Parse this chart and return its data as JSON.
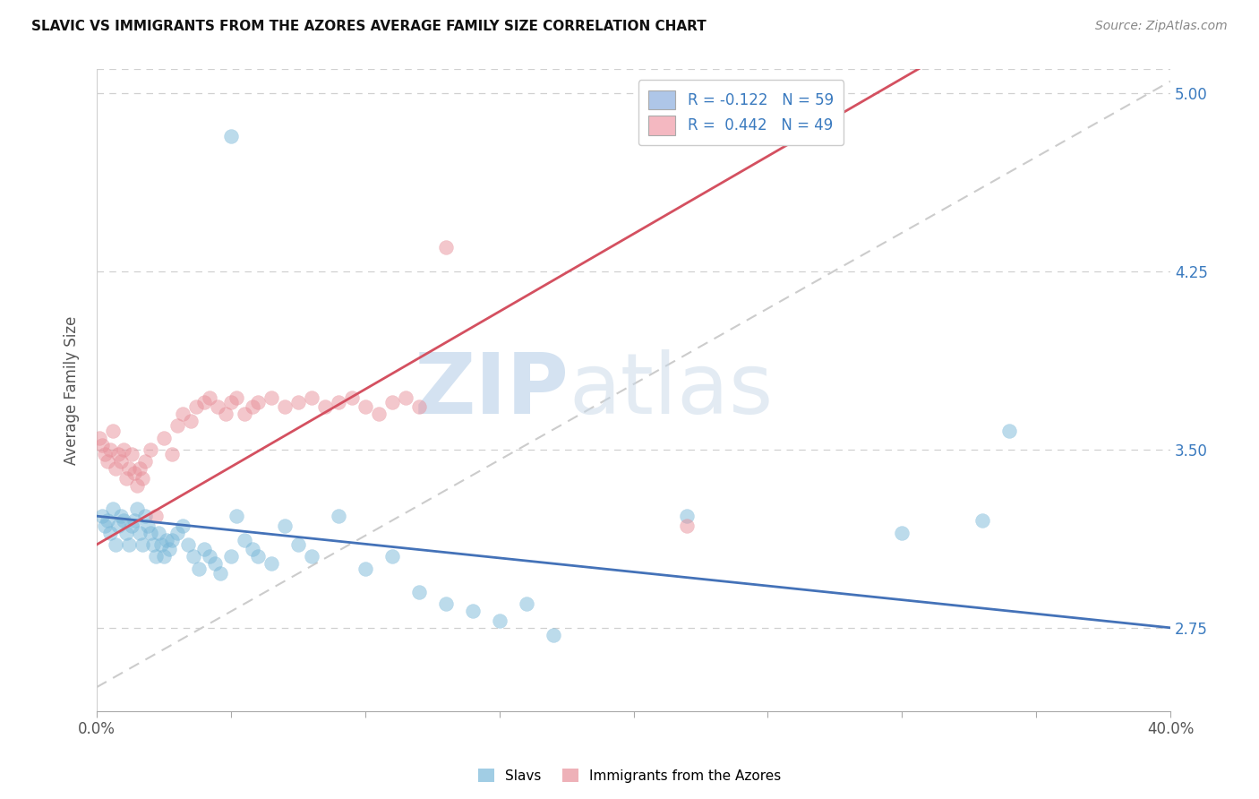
{
  "title": "SLAVIC VS IMMIGRANTS FROM THE AZORES AVERAGE FAMILY SIZE CORRELATION CHART",
  "source": "Source: ZipAtlas.com",
  "ylabel": "Average Family Size",
  "x_min": 0.0,
  "x_max": 0.4,
  "y_min": 2.4,
  "y_max": 5.1,
  "right_yticks": [
    5.0,
    4.25,
    3.5,
    2.75
  ],
  "x_ticklabels_show": [
    "0.0%",
    "40.0%"
  ],
  "x_ticks": [
    0.0,
    0.05,
    0.1,
    0.15,
    0.2,
    0.25,
    0.3,
    0.35,
    0.4
  ],
  "bottom_labels": [
    "Slavs",
    "Immigrants from the Azores"
  ],
  "legend_entries": [
    {
      "label": "R = -0.122   N = 59",
      "facecolor": "#aec6e8"
    },
    {
      "label": "R =  0.442   N = 49",
      "facecolor": "#f4b8c1"
    }
  ],
  "slav_color": "#7ab8d9",
  "azores_color": "#e8909a",
  "slav_line_color": "#4472b8",
  "azores_line_color": "#d45060",
  "legend_text_color": "#3a7abf",
  "background_color": "#ffffff",
  "watermark_zip": "ZIP",
  "watermark_atlas": "atlas",
  "slav_line_y0": 3.22,
  "slav_line_y1": 2.75,
  "azores_line_y0": 3.1,
  "azores_line_y1": 3.95,
  "azores_line_x1": 0.13,
  "ref_line_x": [
    0.0,
    0.4
  ],
  "ref_line_y": [
    2.5,
    5.05
  ],
  "slavs_x": [
    0.002,
    0.003,
    0.004,
    0.005,
    0.006,
    0.007,
    0.008,
    0.009,
    0.01,
    0.011,
    0.012,
    0.013,
    0.014,
    0.015,
    0.016,
    0.017,
    0.018,
    0.019,
    0.02,
    0.021,
    0.022,
    0.023,
    0.024,
    0.025,
    0.026,
    0.027,
    0.028,
    0.03,
    0.032,
    0.034,
    0.036,
    0.038,
    0.04,
    0.042,
    0.044,
    0.046,
    0.05,
    0.052,
    0.055,
    0.058,
    0.06,
    0.065,
    0.07,
    0.075,
    0.08,
    0.09,
    0.1,
    0.11,
    0.12,
    0.13,
    0.14,
    0.15,
    0.16,
    0.05,
    0.17,
    0.22,
    0.3,
    0.33,
    0.34
  ],
  "slavs_y": [
    3.22,
    3.18,
    3.2,
    3.15,
    3.25,
    3.1,
    3.18,
    3.22,
    3.2,
    3.15,
    3.1,
    3.18,
    3.2,
    3.25,
    3.15,
    3.1,
    3.22,
    3.18,
    3.15,
    3.1,
    3.05,
    3.15,
    3.1,
    3.05,
    3.12,
    3.08,
    3.12,
    3.15,
    3.18,
    3.1,
    3.05,
    3.0,
    3.08,
    3.05,
    3.02,
    2.98,
    3.05,
    3.22,
    3.12,
    3.08,
    3.05,
    3.02,
    3.18,
    3.1,
    3.05,
    3.22,
    3.0,
    3.05,
    2.9,
    2.85,
    2.82,
    2.78,
    2.85,
    4.82,
    2.72,
    3.22,
    3.15,
    3.2,
    3.58
  ],
  "azores_x": [
    0.001,
    0.002,
    0.003,
    0.004,
    0.005,
    0.006,
    0.007,
    0.008,
    0.009,
    0.01,
    0.011,
    0.012,
    0.013,
    0.014,
    0.015,
    0.016,
    0.017,
    0.018,
    0.02,
    0.022,
    0.025,
    0.028,
    0.03,
    0.032,
    0.035,
    0.037,
    0.04,
    0.042,
    0.045,
    0.048,
    0.05,
    0.052,
    0.055,
    0.058,
    0.06,
    0.065,
    0.07,
    0.075,
    0.08,
    0.085,
    0.09,
    0.095,
    0.1,
    0.105,
    0.11,
    0.115,
    0.12,
    0.13,
    0.22
  ],
  "azores_y": [
    3.55,
    3.52,
    3.48,
    3.45,
    3.5,
    3.58,
    3.42,
    3.48,
    3.45,
    3.5,
    3.38,
    3.42,
    3.48,
    3.4,
    3.35,
    3.42,
    3.38,
    3.45,
    3.5,
    3.22,
    3.55,
    3.48,
    3.6,
    3.65,
    3.62,
    3.68,
    3.7,
    3.72,
    3.68,
    3.65,
    3.7,
    3.72,
    3.65,
    3.68,
    3.7,
    3.72,
    3.68,
    3.7,
    3.72,
    3.68,
    3.7,
    3.72,
    3.68,
    3.65,
    3.7,
    3.72,
    3.68,
    4.35,
    3.18
  ]
}
